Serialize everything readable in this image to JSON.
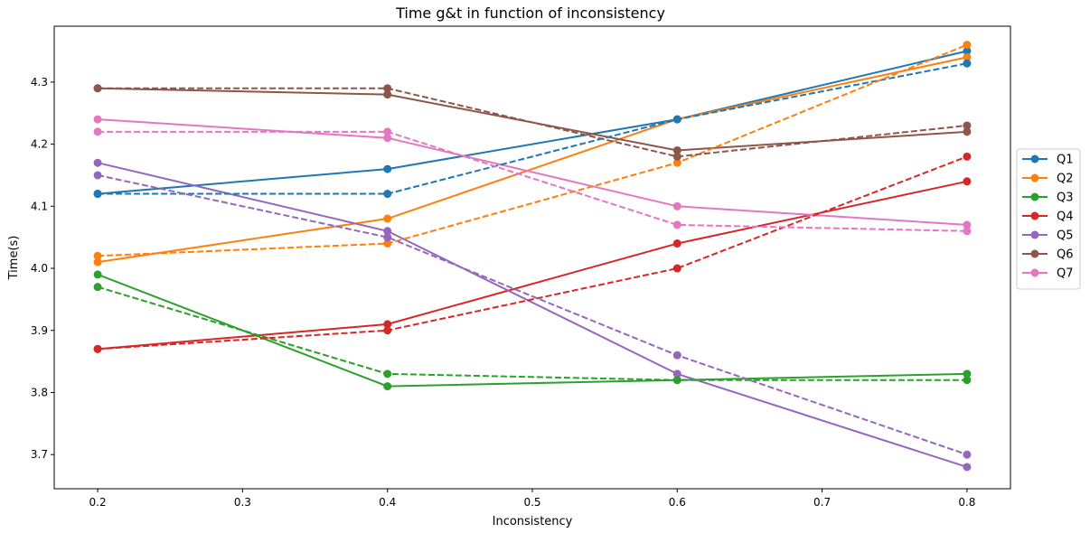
{
  "chart_data": {
    "type": "line",
    "title": "Time g&t in function of inconsistency",
    "xlabel": "Inconsistency",
    "ylabel": "Time(s)",
    "xlim": [
      0.17,
      0.83
    ],
    "ylim": [
      3.645,
      4.39
    ],
    "xticks": [
      0.2,
      0.3,
      0.4,
      0.5,
      0.6,
      0.7,
      0.8
    ],
    "xtick_labels": [
      "0.2",
      "0.3",
      "0.4",
      "0.5",
      "0.6",
      "0.7",
      "0.8"
    ],
    "yticks": [
      3.7,
      3.8,
      3.9,
      4.0,
      4.1,
      4.2,
      4.3
    ],
    "ytick_labels": [
      "3.7",
      "3.8",
      "3.9",
      "4.0",
      "4.1",
      "4.2",
      "4.3"
    ],
    "grid": false,
    "legend_position": "right",
    "x": [
      0.2,
      0.4,
      0.6,
      0.8
    ],
    "series": [
      {
        "name": "Q1",
        "color": "#1f77b4",
        "style": "solid",
        "values": [
          4.12,
          4.16,
          4.24,
          4.35
        ]
      },
      {
        "name": "Q2",
        "color": "#ff7f0e",
        "style": "solid",
        "values": [
          4.01,
          4.08,
          4.24,
          4.34
        ]
      },
      {
        "name": "Q3",
        "color": "#2ca02c",
        "style": "solid",
        "values": [
          3.99,
          3.81,
          3.82,
          3.83
        ]
      },
      {
        "name": "Q4",
        "color": "#d62728",
        "style": "solid",
        "values": [
          3.87,
          3.91,
          4.04,
          4.14
        ]
      },
      {
        "name": "Q5",
        "color": "#9467bd",
        "style": "solid",
        "values": [
          4.17,
          4.06,
          3.83,
          3.68
        ]
      },
      {
        "name": "Q6",
        "color": "#8c564b",
        "style": "solid",
        "values": [
          4.29,
          4.28,
          4.19,
          4.22
        ]
      },
      {
        "name": "Q7",
        "color": "#e377c2",
        "style": "solid",
        "values": [
          4.24,
          4.21,
          4.1,
          4.07
        ]
      },
      {
        "color": "#1f77b4",
        "style": "dashed",
        "values": [
          4.12,
          4.12,
          4.24,
          4.33
        ]
      },
      {
        "color": "#ff7f0e",
        "style": "dashed",
        "values": [
          4.02,
          4.04,
          4.17,
          4.36
        ]
      },
      {
        "color": "#2ca02c",
        "style": "dashed",
        "values": [
          3.97,
          3.83,
          3.82,
          3.82
        ]
      },
      {
        "color": "#d62728",
        "style": "dashed",
        "values": [
          3.87,
          3.9,
          4.0,
          4.18
        ]
      },
      {
        "color": "#9467bd",
        "style": "dashed",
        "values": [
          4.15,
          4.05,
          3.86,
          3.7
        ]
      },
      {
        "color": "#8c564b",
        "style": "dashed",
        "values": [
          4.29,
          4.29,
          4.18,
          4.23
        ]
      },
      {
        "color": "#e377c2",
        "style": "dashed",
        "values": [
          4.22,
          4.22,
          4.07,
          4.06
        ]
      }
    ]
  }
}
